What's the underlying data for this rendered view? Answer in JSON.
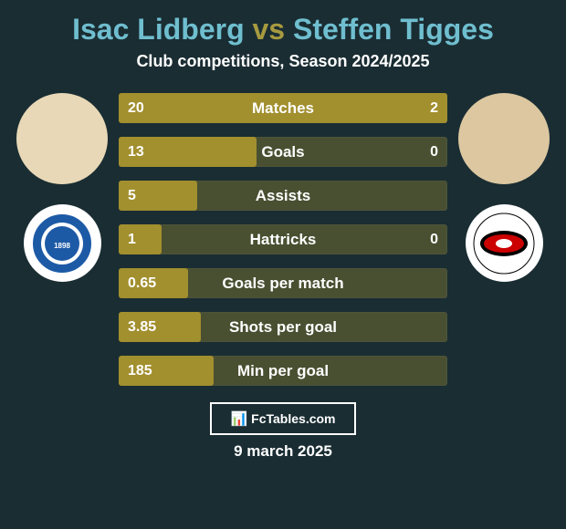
{
  "page": {
    "background_color": "#1a2d33",
    "text_color": "#ffffff"
  },
  "title": {
    "player1": "Isac Lidberg",
    "vs": "vs",
    "player2": "Steffen Tigges",
    "p1_color": "#6fbecf",
    "vs_color": "#a79a3f",
    "p2_color": "#6fbecf"
  },
  "subtitle": "Club competitions, Season 2024/2025",
  "players": {
    "left_avatar_bg": "#e8d8b7",
    "right_avatar_bg": "#dcc7a0",
    "left_club_label": "DARMSTADT",
    "left_club_color": "#1d5aa6",
    "right_club_color": "#cc0000"
  },
  "bars": {
    "fill_color": "#a28f2e",
    "track_color": "#a28f2e",
    "text_color": "#ffffff",
    "label_color": "#ffffff",
    "items": [
      {
        "label": "Matches",
        "left": "20",
        "right": "2",
        "fill_pct": 100
      },
      {
        "label": "Goals",
        "left": "13",
        "right": "0",
        "fill_pct": 42
      },
      {
        "label": "Assists",
        "left": "5",
        "right": "",
        "fill_pct": 24
      },
      {
        "label": "Hattricks",
        "left": "1",
        "right": "0",
        "fill_pct": 13
      },
      {
        "label": "Goals per match",
        "left": "0.65",
        "right": "",
        "fill_pct": 21
      },
      {
        "label": "Shots per goal",
        "left": "3.85",
        "right": "",
        "fill_pct": 25
      },
      {
        "label": "Min per goal",
        "left": "185",
        "right": "",
        "fill_pct": 29
      }
    ]
  },
  "footer": {
    "brand": "FcTables.com",
    "date": "9 march 2025"
  }
}
